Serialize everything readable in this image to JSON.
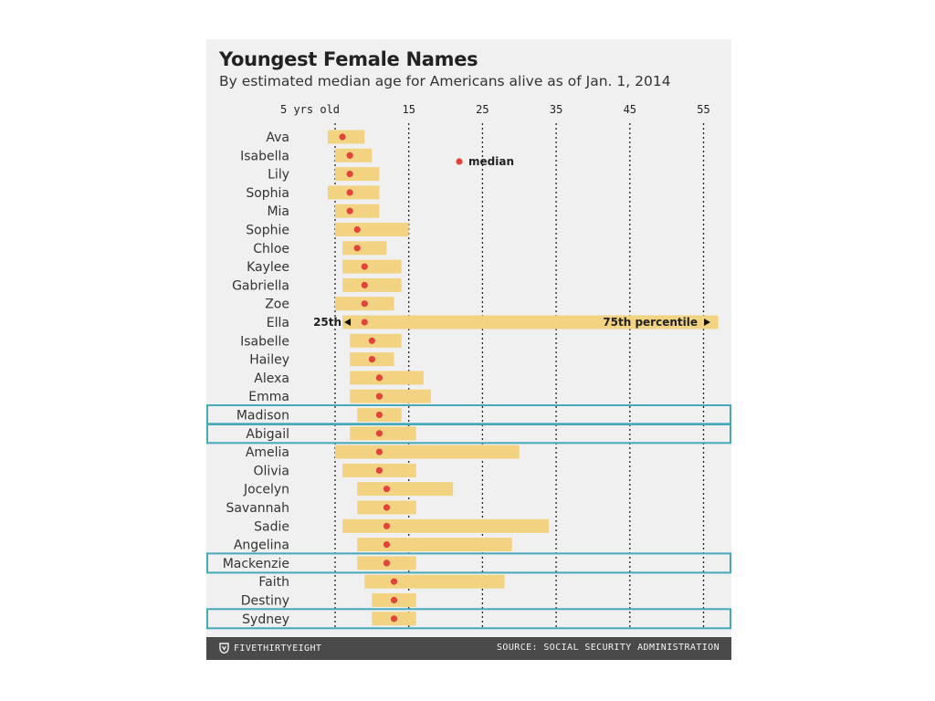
{
  "chart_data": {
    "type": "bar",
    "title": "Youngest Female Names",
    "subtitle": "By estimated median age for Americans alive as of Jan. 1, 2014",
    "x_ticks": [
      {
        "value": 5,
        "label": "5 yrs old"
      },
      {
        "value": 15,
        "label": "15"
      },
      {
        "value": 25,
        "label": "25"
      },
      {
        "value": 35,
        "label": "35"
      },
      {
        "value": 45,
        "label": "45"
      },
      {
        "value": 55,
        "label": "55"
      }
    ],
    "xlim": [
      0,
      57
    ],
    "grid": true,
    "series": [
      {
        "name": "25th",
        "values": [
          4,
          5,
          5,
          4,
          5,
          5,
          6,
          6,
          6,
          5,
          6,
          7,
          7,
          7,
          7,
          8,
          7,
          5,
          6,
          8,
          8,
          6,
          8,
          8,
          9,
          10,
          10
        ]
      },
      {
        "name": "median",
        "values": [
          6,
          7,
          7,
          7,
          7,
          8,
          8,
          9,
          9,
          9,
          9,
          10,
          10,
          11,
          11,
          11,
          11,
          11,
          11,
          12,
          12,
          12,
          12,
          12,
          13,
          13,
          13
        ]
      },
      {
        "name": "75th percentile",
        "values": [
          9,
          10,
          11,
          11,
          11,
          15,
          12,
          14,
          14,
          13,
          57,
          14,
          13,
          17,
          18,
          14,
          16,
          30,
          16,
          21,
          16,
          34,
          29,
          16,
          28,
          16,
          16
        ]
      }
    ],
    "categories": [
      "Ava",
      "Isabella",
      "Lily",
      "Sophia",
      "Mia",
      "Sophie",
      "Chloe",
      "Kaylee",
      "Gabriella",
      "Zoe",
      "Ella",
      "Isabelle",
      "Hailey",
      "Alexa",
      "Emma",
      "Madison",
      "Abigail",
      "Amelia",
      "Olivia",
      "Jocelyn",
      "Savannah",
      "Sadie",
      "Angelina",
      "Mackenzie",
      "Faith",
      "Destiny",
      "Sydney"
    ],
    "highlighted": [
      "Madison",
      "Abigail",
      "Mackenzie",
      "Sydney"
    ],
    "legend": {
      "label": "median",
      "placement": "top-center"
    },
    "annotations": {
      "left": "25th",
      "right": "75th percentile",
      "on_category": "Ella"
    },
    "colors": {
      "bar": "#f2d382",
      "median": "#e0443a",
      "highlight": "#45a9b9",
      "grid": "#222222"
    }
  },
  "footer": {
    "brand": "FIVETHIRTYEIGHT",
    "source": "SOURCE: SOCIAL SECURITY ADMINISTRATION"
  }
}
